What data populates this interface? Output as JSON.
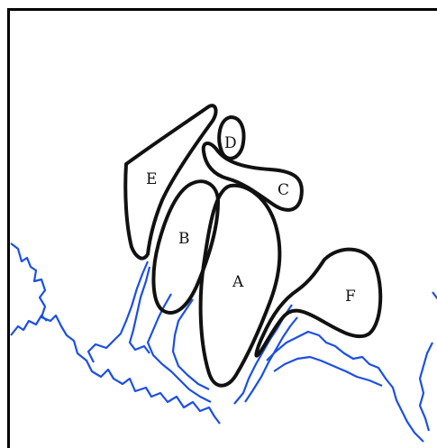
{
  "diagram": {
    "colors": {
      "outline": "#111111",
      "coastline": "#1a4fe6",
      "border": "#000000",
      "background": "#ffffff"
    },
    "regions": [
      {
        "id": "A",
        "label": "A"
      },
      {
        "id": "B",
        "label": "B"
      },
      {
        "id": "C",
        "label": "C"
      },
      {
        "id": "D",
        "label": "D"
      },
      {
        "id": "E",
        "label": "E"
      },
      {
        "id": "F",
        "label": "F"
      }
    ]
  }
}
